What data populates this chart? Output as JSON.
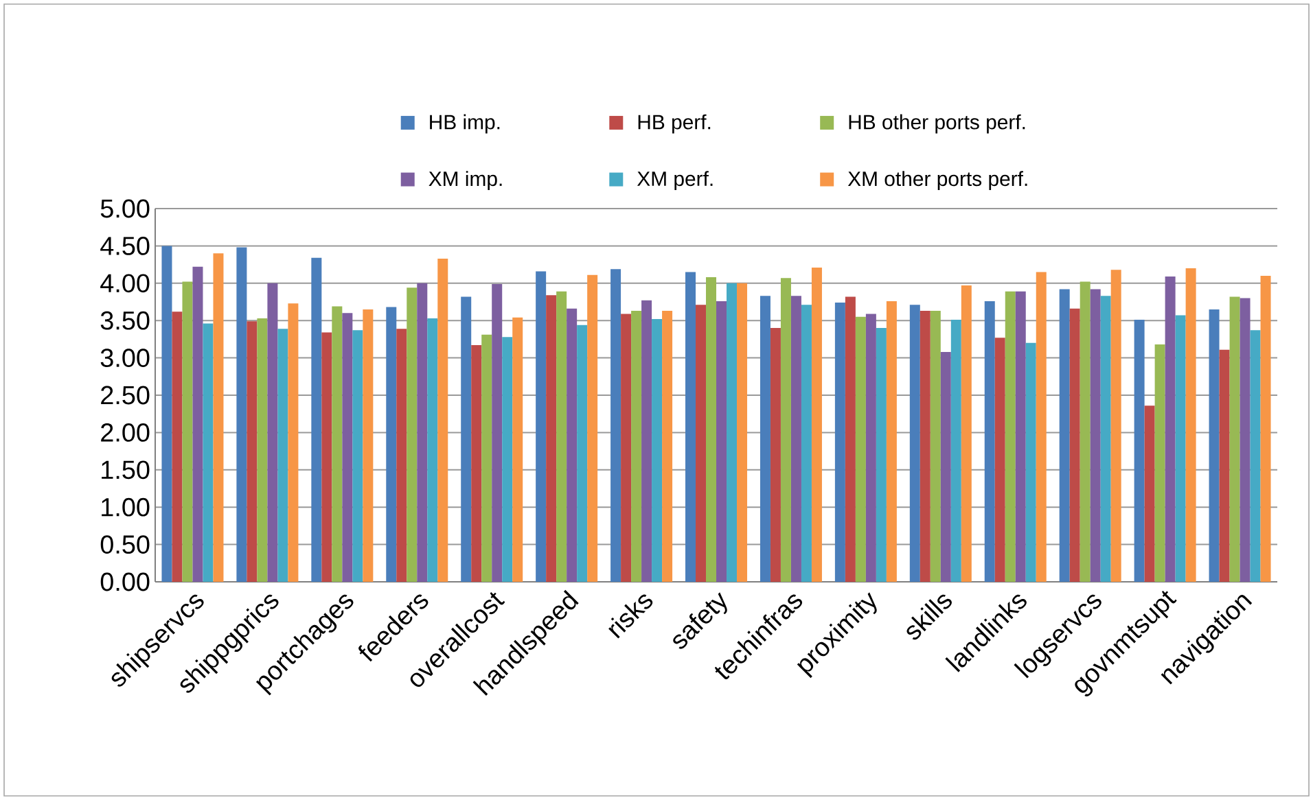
{
  "chart_data": {
    "type": "bar",
    "categories": [
      "shipservcs",
      "shippgprics",
      "portchages",
      "feeders",
      "overallcost",
      "handlspeed",
      "risks",
      "safety",
      "techinfras",
      "proximity",
      "skills",
      "landlinks",
      "logservcs",
      "govnmtsupt",
      "navigation"
    ],
    "series": [
      {
        "name": "HB imp.",
        "color": "#4a7ebb",
        "values": [
          4.5,
          4.48,
          4.34,
          3.68,
          3.82,
          4.16,
          4.19,
          4.15,
          3.83,
          3.74,
          3.71,
          3.76,
          3.92,
          3.51,
          3.65
        ]
      },
      {
        "name": "HB perf.",
        "color": "#be4b48",
        "values": [
          3.62,
          3.49,
          3.34,
          3.39,
          3.17,
          3.84,
          3.59,
          3.71,
          3.4,
          3.82,
          3.63,
          3.27,
          3.66,
          2.36,
          3.11
        ]
      },
      {
        "name": "HB other ports perf.",
        "color": "#98b954",
        "values": [
          4.02,
          3.53,
          3.69,
          3.94,
          3.31,
          3.89,
          3.63,
          4.08,
          4.07,
          3.55,
          3.63,
          3.89,
          4.02,
          3.18,
          3.82
        ]
      },
      {
        "name": "XM imp.",
        "color": "#7d5fa0",
        "values": [
          4.22,
          4.0,
          3.6,
          4.0,
          3.99,
          3.66,
          3.77,
          3.76,
          3.83,
          3.59,
          3.08,
          3.89,
          3.92,
          4.09,
          3.8
        ]
      },
      {
        "name": "XM perf.",
        "color": "#46aac5",
        "values": [
          3.46,
          3.39,
          3.37,
          3.53,
          3.28,
          3.44,
          3.52,
          4.0,
          3.71,
          3.4,
          3.51,
          3.2,
          3.83,
          3.57,
          3.37
        ]
      },
      {
        "name": "XM other ports perf.",
        "color": "#f79646",
        "values": [
          4.4,
          3.73,
          3.65,
          4.33,
          3.54,
          4.11,
          3.63,
          4.0,
          4.21,
          3.76,
          3.97,
          4.15,
          4.18,
          4.2,
          4.1
        ]
      }
    ],
    "ylim": [
      0,
      5
    ],
    "yticks": [
      {
        "value": 0,
        "label": "0.00"
      },
      {
        "value": 0.5,
        "label": "0.50"
      },
      {
        "value": 1,
        "label": "1.00"
      },
      {
        "value": 1.5,
        "label": "1.50"
      },
      {
        "value": 2,
        "label": "2.00"
      },
      {
        "value": 2.5,
        "label": "2.50"
      },
      {
        "value": 3,
        "label": "3.00"
      },
      {
        "value": 3.5,
        "label": "3.50"
      },
      {
        "value": 4,
        "label": "4.00"
      },
      {
        "value": 4.5,
        "label": "4.50"
      },
      {
        "value": 5,
        "label": "5.00"
      }
    ],
    "grid": "y",
    "legend": "top"
  }
}
